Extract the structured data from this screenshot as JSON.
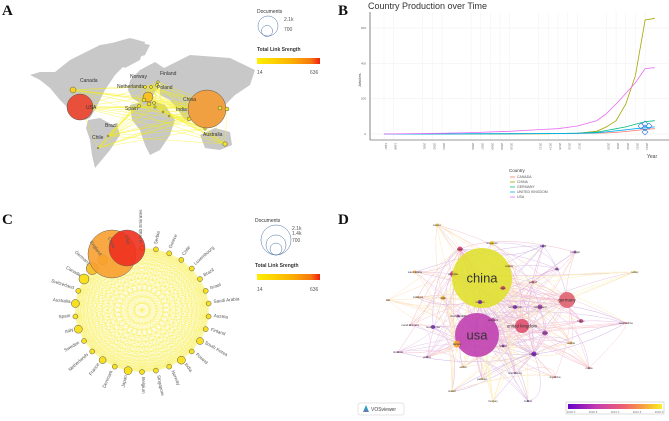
{
  "panels": {
    "a": "A",
    "b": "B",
    "c": "C",
    "d": "D"
  },
  "legend_a": {
    "documents_title": "Documents",
    "size_labels": [
      "2.1k",
      "700"
    ],
    "strength_title": "Total Link Srength",
    "min": "14",
    "max": "636"
  },
  "legend_c": {
    "documents_title": "Documents",
    "size_labels": [
      "2.1k",
      "1.4k",
      "700"
    ],
    "strength_title": "Total Link Srength",
    "min": "14",
    "max": "636"
  },
  "map_labels": [
    "Canada",
    "Norway",
    "Finland",
    "Netherlands",
    "Poland",
    "USA",
    "Spain",
    "China",
    "India",
    "Brazil",
    "Chile",
    "Australia"
  ],
  "circle_countries": [
    "U Arab Emirates",
    "Serbia",
    "Greece",
    "Chile",
    "Luxembourg",
    "Brazil",
    "Israel",
    "Saudi Arabia",
    "Austria",
    "Finland",
    "South Korea",
    "Poland",
    "India",
    "Norway",
    "Singapore",
    "Belgium",
    "Japan",
    "Denmark",
    "France",
    "Netherlands",
    "Sweden",
    "Italy",
    "Spain",
    "Australia",
    "Switzerland",
    "Canada",
    "Germany",
    "England",
    "China",
    "USA"
  ],
  "vos": {
    "brand": "VOSviewer",
    "scale_ticks": [
      "2020.0",
      "2020.5",
      "2021.0",
      "2021.5",
      "2022.0"
    ],
    "nodes": [
      "mexico",
      "singapore",
      "japan",
      "brazil",
      "portugal",
      "saudi arabia",
      "australia",
      "china",
      "italy",
      "norway",
      "poland",
      "turkey",
      "iran",
      "malaysia",
      "india",
      "spain",
      "germany",
      "sweden",
      "netherlands",
      "switzerland",
      "czech republic",
      "denmark",
      "france",
      "south africa",
      "u arab emirates",
      "south korea",
      "united kingdom",
      "usa",
      "israel",
      "canada",
      "austria",
      "finland",
      "slovenia",
      "belgium",
      "greece",
      "serbia",
      "russia",
      "luxembourg",
      "pakistan",
      "argentina",
      "kuwait",
      "hungary",
      "ireland"
    ]
  },
  "chart_data": {
    "type": "line",
    "title": "Country Production over Time",
    "xlabel": "Year",
    "ylabel": "Articles",
    "x_ticks": [
      1997,
      1998,
      2001,
      2002,
      2003,
      2006,
      2007,
      2008,
      2009,
      2010,
      2013,
      2014,
      2015,
      2016,
      2017,
      2020,
      2021,
      2022,
      2023,
      2024
    ],
    "y_ticks": [
      0,
      200,
      400,
      600
    ],
    "ylim": [
      0,
      650
    ],
    "grid": true,
    "legend_title": "Country",
    "legend_position": "bottom",
    "x": [
      1997,
      2000,
      2003,
      2006,
      2010,
      2013,
      2015,
      2017,
      2019,
      2020,
      2021,
      2022,
      2023,
      2024,
      2025
    ],
    "series": [
      {
        "name": "CANADA",
        "color": "#f8766d",
        "values": [
          0,
          0,
          0,
          1,
          1,
          2,
          2,
          3,
          5,
          6,
          9,
          14,
          20,
          26,
          30
        ]
      },
      {
        "name": "CHINA",
        "color": "#a3a500",
        "values": [
          0,
          0,
          0,
          0,
          1,
          1,
          2,
          4,
          15,
          40,
          75,
          170,
          330,
          645,
          655
        ]
      },
      {
        "name": "GERMANY",
        "color": "#00bf7d",
        "values": [
          0,
          0,
          0,
          1,
          2,
          2,
          3,
          5,
          10,
          20,
          30,
          40,
          55,
          70,
          75
        ]
      },
      {
        "name": "UNITED KINGDOM",
        "color": "#00b0f6",
        "values": [
          0,
          0,
          0,
          1,
          1,
          2,
          3,
          4,
          7,
          12,
          18,
          24,
          30,
          35,
          40
        ]
      },
      {
        "name": "USA",
        "color": "#e76bf3",
        "values": [
          0,
          2,
          4,
          8,
          15,
          25,
          30,
          45,
          75,
          115,
          170,
          230,
          290,
          370,
          375
        ]
      }
    ]
  }
}
